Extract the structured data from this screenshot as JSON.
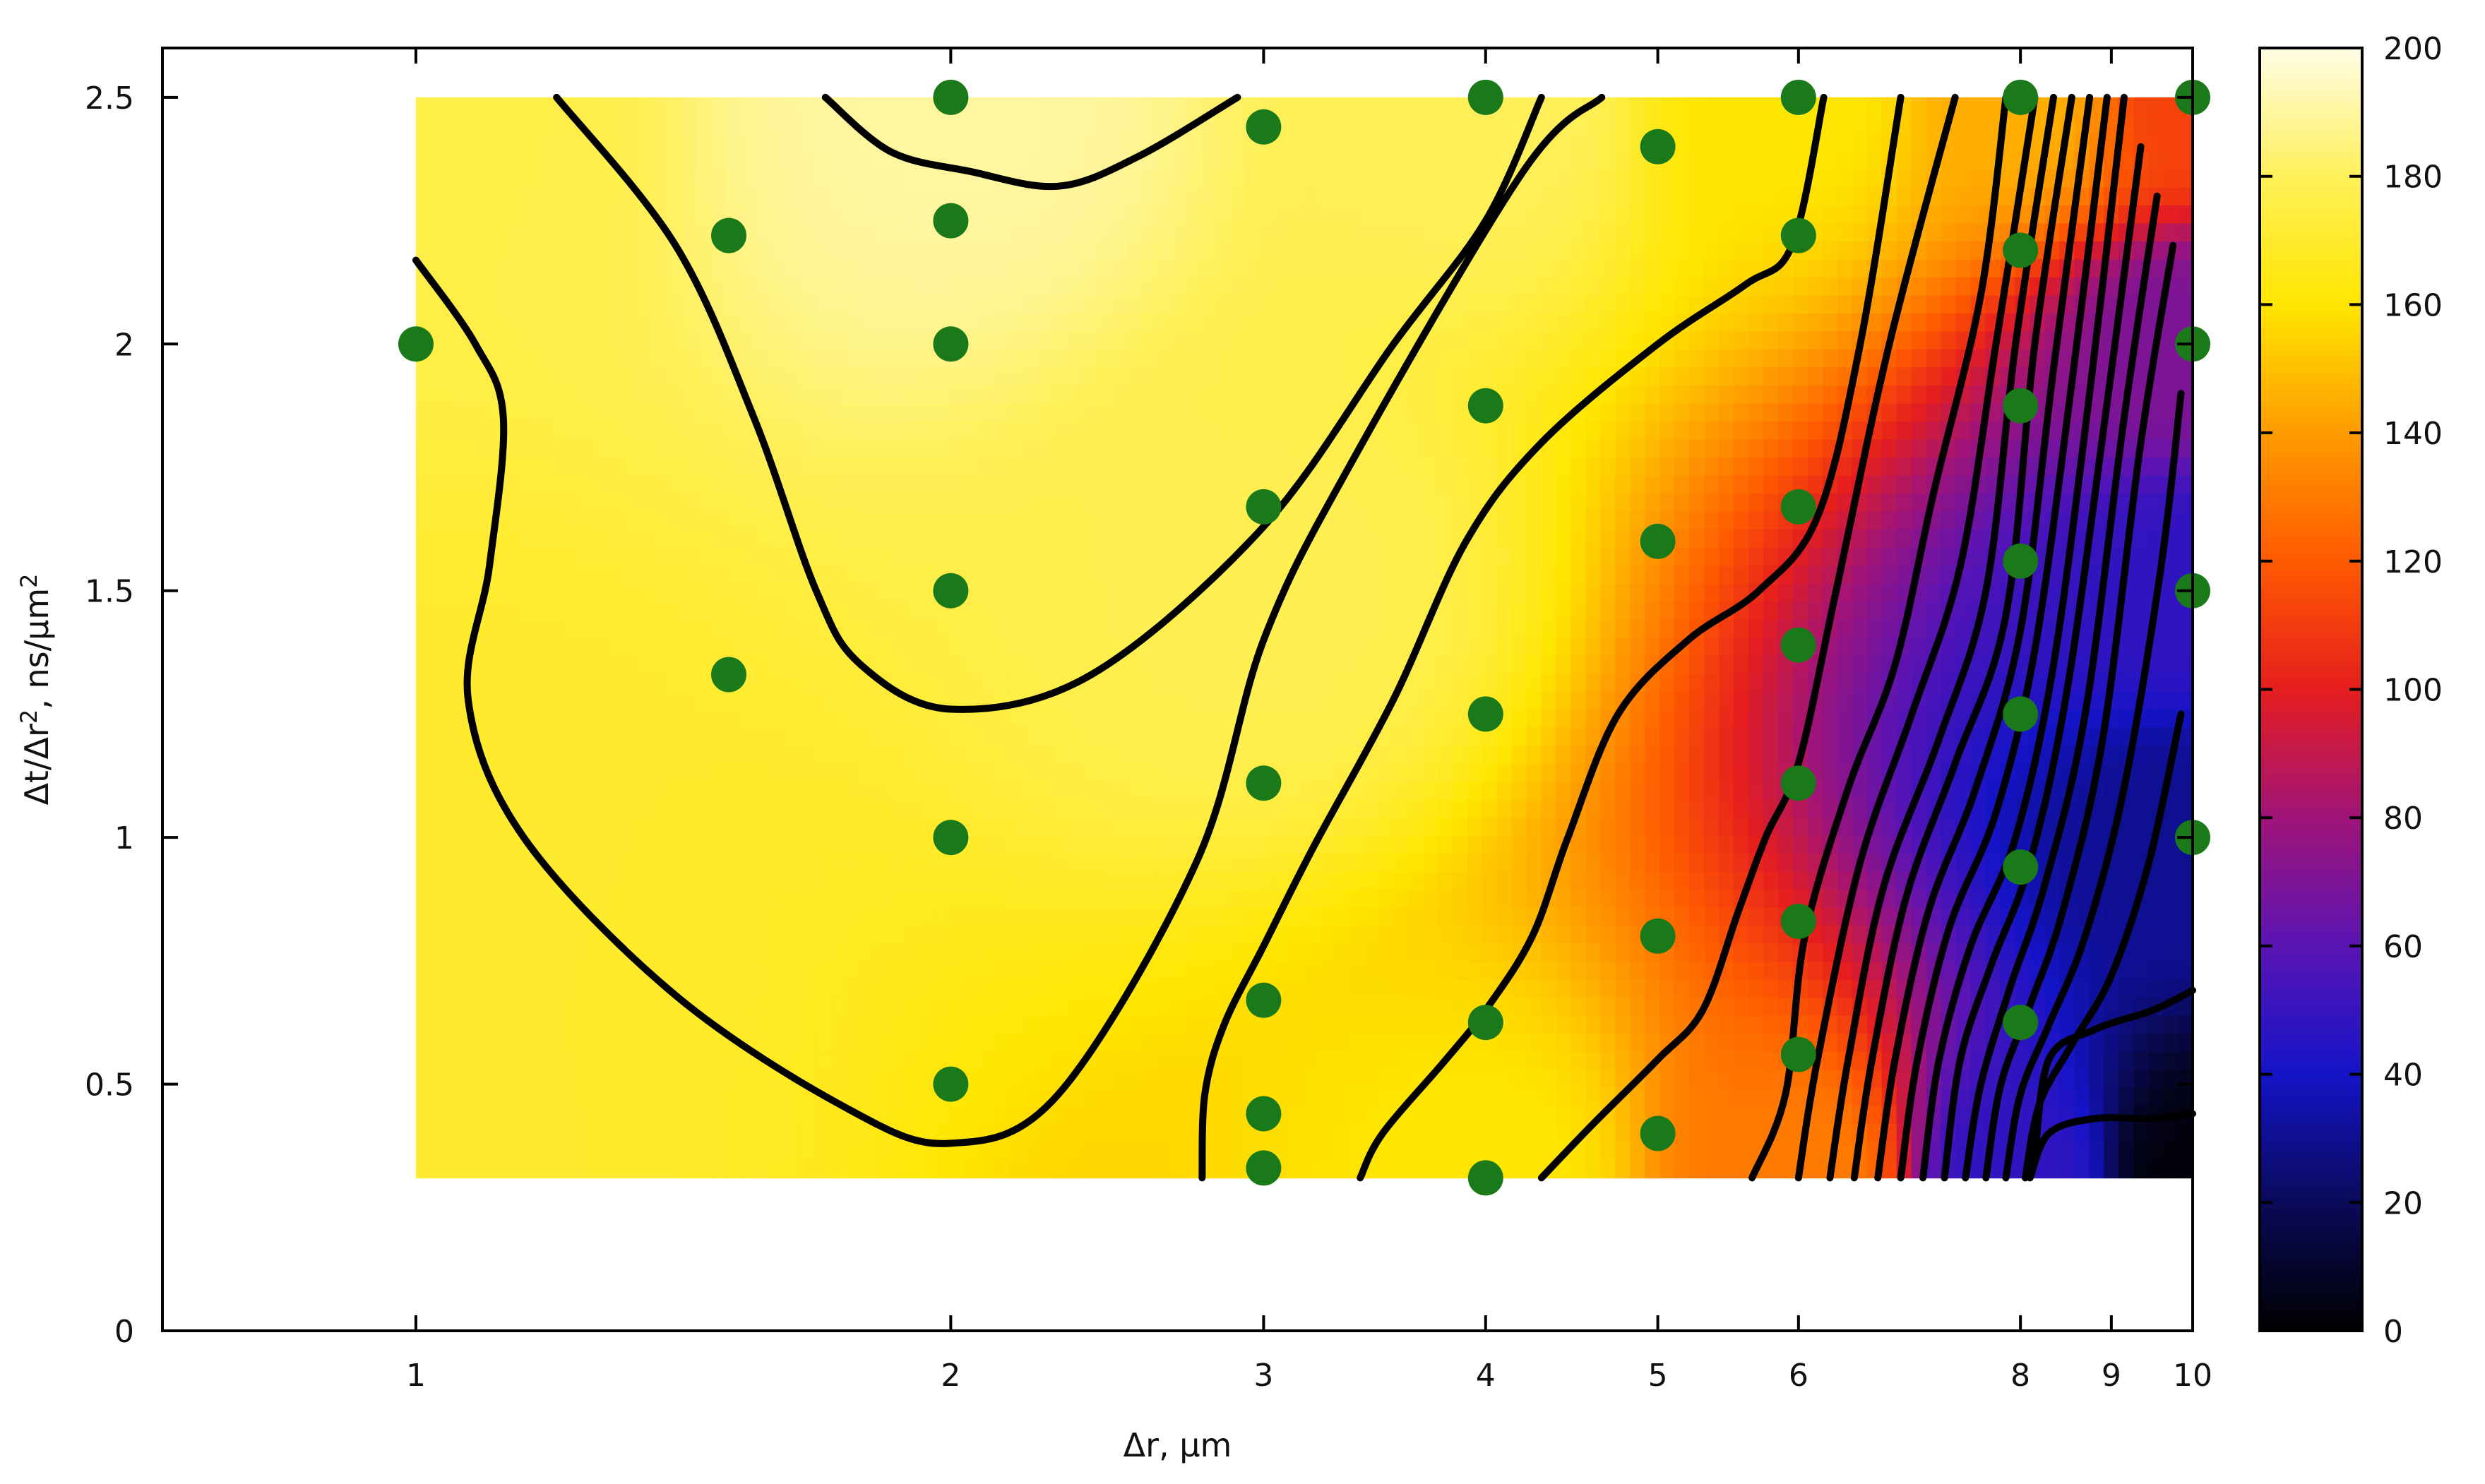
{
  "chart_data": {
    "type": "heatmap",
    "title": "",
    "xlabel": "Δr, μm",
    "ylabel_parts": {
      "text": "Δt/Δr",
      "sup1": "2",
      "mid": ", ns/μm",
      "sup2": "2"
    },
    "x_scale": "log",
    "xlim": [
      0.72,
      10
    ],
    "ylim": [
      0,
      2.6
    ],
    "x_ticks": [
      1,
      2,
      3,
      4,
      5,
      6,
      8,
      9,
      10
    ],
    "x_tick_labels": [
      "1",
      "2",
      "3",
      "4",
      "5",
      "6",
      "8",
      "9",
      "10"
    ],
    "y_ticks": [
      0,
      0.5,
      1,
      1.5,
      2,
      2.5
    ],
    "y_tick_labels": [
      "0",
      "0.5",
      "1",
      "1.5",
      "2",
      "2.5"
    ],
    "colorbar": {
      "range": [
        0,
        200
      ],
      "ticks": [
        0,
        20,
        40,
        60,
        80,
        100,
        120,
        140,
        160,
        180,
        200
      ],
      "tick_labels": [
        "0",
        "20",
        "40",
        "60",
        "80",
        "100",
        "120",
        "140",
        "160",
        "180",
        "200"
      ],
      "colormap": [
        "#000000",
        "#0a0a5a",
        "#1414c8",
        "#5a14b4",
        "#a01478",
        "#e61e1e",
        "#ff5a00",
        "#ff9b00",
        "#ffe600",
        "#fff05a",
        "#fffce6"
      ]
    },
    "grid": false,
    "legend": "none",
    "field_extent": {
      "x": [
        1,
        10
      ],
      "y": [
        0.31,
        2.5
      ]
    },
    "field_samples": [
      {
        "x": 1,
        "y": 2.5,
        "v": 176
      },
      {
        "x": 2,
        "y": 2.5,
        "v": 190
      },
      {
        "x": 4,
        "y": 2.5,
        "v": 180
      },
      {
        "x": 6,
        "y": 2.5,
        "v": 160
      },
      {
        "x": 8,
        "y": 2.5,
        "v": 145
      },
      {
        "x": 10,
        "y": 2.5,
        "v": 112
      },
      {
        "x": 10,
        "y": 2.0,
        "v": 70
      },
      {
        "x": 10,
        "y": 1.5,
        "v": 48
      },
      {
        "x": 10,
        "y": 1.0,
        "v": 30
      },
      {
        "x": 10,
        "y": 0.31,
        "v": 3
      },
      {
        "x": 8,
        "y": 0.31,
        "v": 48
      },
      {
        "x": 6,
        "y": 0.31,
        "v": 130
      },
      {
        "x": 4,
        "y": 0.31,
        "v": 160
      },
      {
        "x": 1,
        "y": 0.31,
        "v": 170
      },
      {
        "x": 1,
        "y": 1.0,
        "v": 170
      },
      {
        "x": 3,
        "y": 1.5,
        "v": 178
      }
    ],
    "contours": [
      {
        "name": "c1",
        "points": [
          [
            1,
            2.17
          ],
          [
            1.08,
            2.0
          ],
          [
            1.12,
            1.85
          ],
          [
            1.1,
            1.55
          ],
          [
            1.07,
            1.28
          ],
          [
            1.15,
            1.0
          ],
          [
            1.4,
            0.68
          ],
          [
            1.75,
            0.45
          ],
          [
            2.0,
            0.38
          ],
          [
            2.3,
            0.48
          ],
          [
            2.75,
            0.95
          ],
          [
            3.0,
            1.4
          ],
          [
            3.35,
            1.75
          ],
          [
            4.2,
            2.35
          ],
          [
            4.65,
            2.5
          ]
        ]
      },
      {
        "name": "c2",
        "points": [
          [
            1.2,
            2.5
          ],
          [
            1.4,
            2.2
          ],
          [
            1.55,
            1.85
          ],
          [
            1.68,
            1.5
          ],
          [
            1.78,
            1.35
          ],
          [
            2.0,
            1.26
          ],
          [
            2.4,
            1.33
          ],
          [
            3.0,
            1.63
          ],
          [
            3.55,
            2.0
          ],
          [
            4.0,
            2.25
          ],
          [
            4.3,
            2.5
          ]
        ]
      },
      {
        "name": "c3",
        "points": [
          [
            1.7,
            2.5
          ],
          [
            1.85,
            2.39
          ],
          [
            2.05,
            2.35
          ],
          [
            2.3,
            2.32
          ],
          [
            2.55,
            2.38
          ],
          [
            2.9,
            2.5
          ]
        ]
      },
      {
        "name": "c4",
        "points": [
          [
            2.77,
            0.31
          ],
          [
            2.78,
            0.48
          ],
          [
            2.85,
            0.62
          ],
          [
            3.0,
            0.78
          ],
          [
            3.2,
            0.98
          ],
          [
            3.55,
            1.28
          ],
          [
            3.9,
            1.6
          ],
          [
            4.3,
            1.8
          ],
          [
            5.0,
            2.0
          ],
          [
            5.6,
            2.12
          ],
          [
            5.95,
            2.2
          ],
          [
            6.2,
            2.5
          ]
        ]
      },
      {
        "name": "c5",
        "points": [
          [
            3.4,
            0.31
          ],
          [
            3.5,
            0.4
          ],
          [
            3.8,
            0.55
          ],
          [
            4.0,
            0.65
          ],
          [
            4.25,
            0.8
          ],
          [
            4.45,
            1.0
          ],
          [
            4.75,
            1.25
          ],
          [
            5.2,
            1.4
          ],
          [
            5.7,
            1.5
          ],
          [
            6.15,
            1.65
          ],
          [
            6.5,
            2.0
          ],
          [
            6.85,
            2.5
          ]
        ]
      },
      {
        "name": "c6",
        "points": [
          [
            4.3,
            0.31
          ],
          [
            4.6,
            0.42
          ],
          [
            5.0,
            0.55
          ],
          [
            5.3,
            0.65
          ],
          [
            5.55,
            0.85
          ],
          [
            5.75,
            1.0
          ],
          [
            6.0,
            1.15
          ],
          [
            6.3,
            1.5
          ],
          [
            6.75,
            2.0
          ],
          [
            7.35,
            2.5
          ]
        ]
      },
      {
        "name": "c7",
        "points": [
          [
            5.65,
            0.31
          ],
          [
            5.9,
            0.48
          ],
          [
            6.05,
            0.8
          ],
          [
            6.4,
            1.1
          ],
          [
            6.8,
            1.35
          ],
          [
            7.15,
            1.7
          ],
          [
            7.6,
            2.1
          ],
          [
            7.85,
            2.5
          ]
        ]
      },
      {
        "name": "c8",
        "points": [
          [
            6.0,
            0.31
          ],
          [
            6.15,
            0.55
          ],
          [
            6.5,
            0.95
          ],
          [
            6.95,
            1.25
          ],
          [
            7.4,
            1.55
          ],
          [
            7.75,
            2.0
          ],
          [
            8.15,
            2.5
          ]
        ]
      },
      {
        "name": "c9",
        "points": [
          [
            6.25,
            0.31
          ],
          [
            6.4,
            0.55
          ],
          [
            6.7,
            0.9
          ],
          [
            7.2,
            1.2
          ],
          [
            7.65,
            1.5
          ],
          [
            7.95,
            2.0
          ],
          [
            8.35,
            2.5
          ]
        ]
      },
      {
        "name": "c10",
        "points": [
          [
            6.45,
            0.31
          ],
          [
            6.6,
            0.55
          ],
          [
            6.9,
            0.88
          ],
          [
            7.35,
            1.15
          ],
          [
            7.85,
            1.45
          ],
          [
            8.15,
            2.0
          ],
          [
            8.55,
            2.5
          ]
        ]
      },
      {
        "name": "c11",
        "points": [
          [
            6.65,
            0.31
          ],
          [
            6.8,
            0.55
          ],
          [
            7.1,
            0.85
          ],
          [
            7.55,
            1.1
          ],
          [
            8.0,
            1.42
          ],
          [
            8.35,
            1.95
          ],
          [
            8.75,
            2.5
          ]
        ]
      },
      {
        "name": "c12",
        "points": [
          [
            6.85,
            0.31
          ],
          [
            7.0,
            0.55
          ],
          [
            7.3,
            0.82
          ],
          [
            7.75,
            1.05
          ],
          [
            8.15,
            1.38
          ],
          [
            8.55,
            1.92
          ],
          [
            8.95,
            2.5
          ]
        ]
      },
      {
        "name": "c13",
        "points": [
          [
            7.05,
            0.31
          ],
          [
            7.2,
            0.55
          ],
          [
            7.5,
            0.78
          ],
          [
            7.95,
            1.0
          ],
          [
            8.35,
            1.35
          ],
          [
            8.75,
            1.9
          ],
          [
            9.15,
            2.5
          ]
        ]
      },
      {
        "name": "c14",
        "points": [
          [
            7.25,
            0.31
          ],
          [
            7.4,
            0.55
          ],
          [
            7.7,
            0.74
          ],
          [
            8.1,
            0.95
          ],
          [
            8.5,
            1.3
          ],
          [
            8.95,
            1.88
          ],
          [
            9.35,
            2.4
          ]
        ]
      },
      {
        "name": "c15",
        "points": [
          [
            7.45,
            0.31
          ],
          [
            7.6,
            0.5
          ],
          [
            7.9,
            0.7
          ],
          [
            8.25,
            0.9
          ],
          [
            8.7,
            1.25
          ],
          [
            9.15,
            1.85
          ],
          [
            9.55,
            2.3
          ]
        ]
      },
      {
        "name": "c16",
        "points": [
          [
            7.65,
            0.31
          ],
          [
            7.8,
            0.5
          ],
          [
            8.1,
            0.66
          ],
          [
            8.45,
            0.85
          ],
          [
            8.9,
            1.2
          ],
          [
            9.35,
            1.8
          ],
          [
            9.75,
            2.2
          ]
        ]
      },
      {
        "name": "c17",
        "points": [
          [
            7.85,
            0.31
          ],
          [
            8.0,
            0.48
          ],
          [
            8.3,
            0.62
          ],
          [
            8.7,
            0.8
          ],
          [
            9.15,
            1.1
          ],
          [
            9.6,
            1.55
          ],
          [
            9.85,
            1.9
          ]
        ]
      },
      {
        "name": "c18",
        "points": [
          [
            8.05,
            0.31
          ],
          [
            8.2,
            0.46
          ],
          [
            8.55,
            0.58
          ],
          [
            9.0,
            0.72
          ],
          [
            9.45,
            0.95
          ],
          [
            9.85,
            1.25
          ]
        ]
      },
      {
        "name": "c19",
        "points": [
          [
            8.15,
            0.35
          ],
          [
            8.3,
            0.55
          ],
          [
            8.8,
            0.61
          ],
          [
            9.5,
            0.65
          ],
          [
            10,
            0.69
          ]
        ]
      },
      {
        "name": "c20",
        "points": [
          [
            8.1,
            0.31
          ],
          [
            8.3,
            0.4
          ],
          [
            8.8,
            0.43
          ],
          [
            9.5,
            0.43
          ],
          [
            10,
            0.44
          ]
        ]
      }
    ],
    "markers": {
      "color": "#1a7a1a",
      "points": [
        [
          1,
          2.0
        ],
        [
          1.5,
          2.22
        ],
        [
          1.5,
          1.33
        ],
        [
          2,
          2.5
        ],
        [
          2,
          2.25
        ],
        [
          2,
          2.0
        ],
        [
          2,
          1.5
        ],
        [
          2,
          1.0
        ],
        [
          2,
          0.5
        ],
        [
          3,
          2.44
        ],
        [
          3,
          1.67
        ],
        [
          3,
          1.11
        ],
        [
          3,
          0.67
        ],
        [
          3,
          0.44
        ],
        [
          3,
          0.33
        ],
        [
          4,
          2.5
        ],
        [
          4,
          1.875
        ],
        [
          4,
          1.25
        ],
        [
          4,
          0.625
        ],
        [
          4,
          0.31
        ],
        [
          5,
          2.4
        ],
        [
          5,
          1.6
        ],
        [
          5,
          0.8
        ],
        [
          5,
          0.4
        ],
        [
          6,
          2.5
        ],
        [
          6,
          2.22
        ],
        [
          6,
          1.67
        ],
        [
          6,
          1.39
        ],
        [
          6,
          1.11
        ],
        [
          6,
          0.83
        ],
        [
          6,
          0.56
        ],
        [
          8,
          2.5
        ],
        [
          8,
          2.19
        ],
        [
          8,
          1.875
        ],
        [
          8,
          1.56
        ],
        [
          8,
          1.25
        ],
        [
          8,
          0.94
        ],
        [
          8,
          0.625
        ],
        [
          10,
          2.5
        ],
        [
          10,
          2.0
        ],
        [
          10,
          1.5
        ],
        [
          10,
          1.0
        ]
      ]
    }
  }
}
